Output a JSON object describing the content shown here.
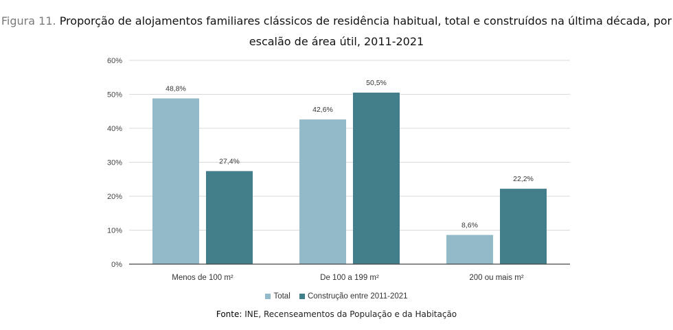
{
  "title": {
    "prefix": "Figura 11.",
    "line1": "Proporção de alojamentos familiares clássicos de residência habitual, total e construídos na última década, por",
    "line2": "escalão de área útil, 2011-2021"
  },
  "source": {
    "label": "Fonte:",
    "text": "INE, Recenseamentos da População e da Habitação"
  },
  "colors": {
    "series_total": "#93bac8",
    "series_construcao": "#427f8b",
    "grid": "#d9d9d9",
    "axis": "#444444"
  },
  "chart_data": {
    "type": "bar",
    "categories": [
      "Menos de 100 m²",
      "De 100 a 199 m²",
      "200 ou mais m²"
    ],
    "series": [
      {
        "name": "Total",
        "values": [
          48.8,
          42.6,
          8.6
        ],
        "labels": [
          "48,8%",
          "42,6%",
          "8,6%"
        ]
      },
      {
        "name": "Construção entre 2011-2021",
        "values": [
          27.4,
          50.5,
          22.2
        ],
        "labels": [
          "27,4%",
          "50,5%",
          "22,2%"
        ]
      }
    ],
    "ylim": [
      0,
      60
    ],
    "yticks": [
      "0%",
      "10%",
      "20%",
      "30%",
      "40%",
      "50%",
      "60%"
    ],
    "grid": true,
    "legend_position": "bottom"
  }
}
